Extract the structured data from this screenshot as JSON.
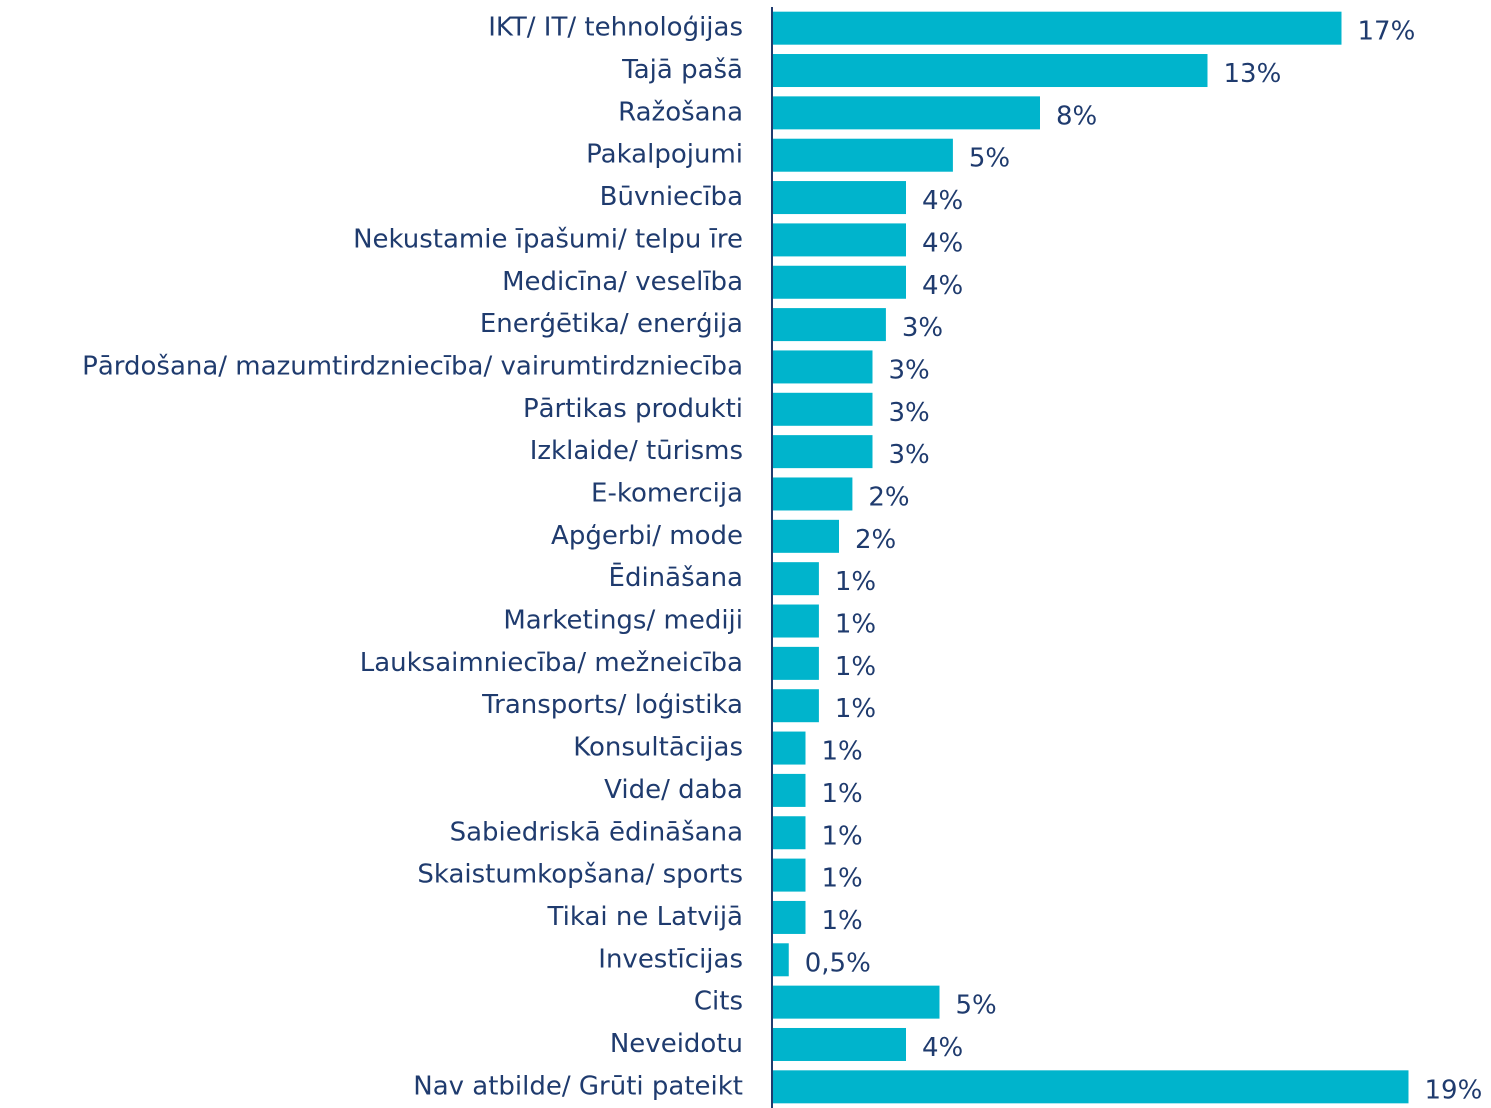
{
  "chart_data": {
    "type": "barh",
    "categories": [
      "IKT/ IT/ tehnoloģijas",
      "Tajā pašā",
      "Ražošana",
      "Pakalpojumi",
      "Būvniecība",
      "Nekustamie īpašumi/ telpu īre",
      "Medicīna/ veselība",
      "Enerģētika/ enerģija",
      "Pārdošana/ mazumtirdzniecība/ vairumtirdzniecība",
      "Pārtikas produkti",
      "Izklaide/ tūrisms",
      "E-komercija",
      "Apģerbi/ mode",
      "Ēdināšana",
      "Marketings/ mediji",
      "Lauksaimniecība/ mežneicība",
      "Transports/ loģistika",
      "Konsultācijas",
      "Vide/ daba",
      "Sabiedriskā ēdināšana",
      "Skaistumkopšana/ sports",
      "Tikai ne Latvijā",
      "Investīcijas",
      "Cits",
      "Neveidotu",
      "Nav atbilde/ Grūti pateikt"
    ],
    "values": [
      17,
      13,
      8,
      5.4,
      4,
      4,
      4,
      3.4,
      3,
      3,
      3,
      2.4,
      2,
      1.4,
      1.4,
      1.4,
      1.4,
      1,
      1,
      1,
      1,
      1,
      0.5,
      5,
      4,
      19
    ],
    "value_labels": [
      "17%",
      "13%",
      "8%",
      "5%",
      "4%",
      "4%",
      "4%",
      "3%",
      "3%",
      "3%",
      "3%",
      "2%",
      "2%",
      "1%",
      "1%",
      "1%",
      "1%",
      "1%",
      "1%",
      "1%",
      "1%",
      "1%",
      "0,5%",
      "5%",
      "4%",
      "19%"
    ],
    "color": "#00b4cc"
  }
}
